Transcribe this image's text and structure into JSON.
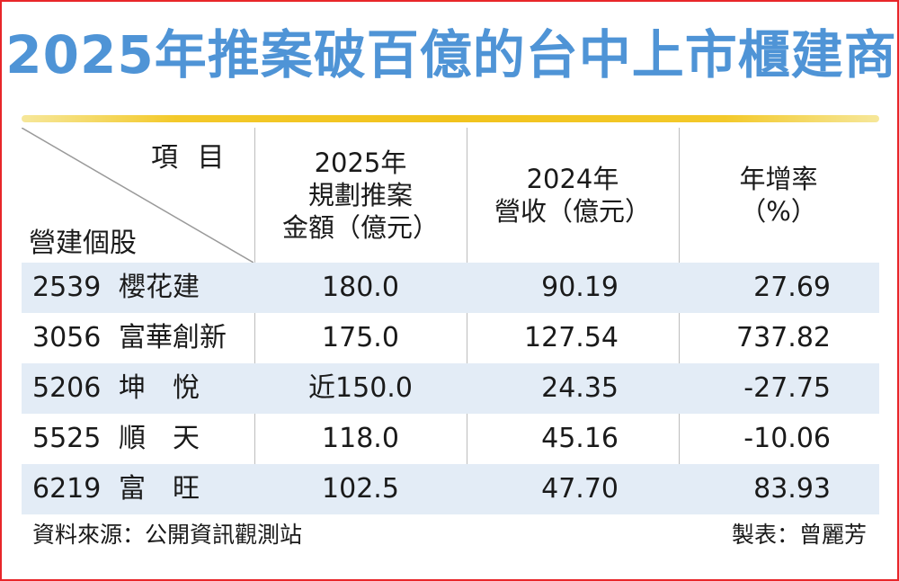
{
  "title": "2025年推案破百億的台中上市櫃建商",
  "header": {
    "corner_top": "項 目",
    "corner_bottom": "營建個股",
    "col1": [
      "2025年",
      "規劃推案",
      "金額（億元）"
    ],
    "col2": [
      "2024年",
      "營收（億元）"
    ],
    "col3": [
      "年增率",
      "（%）"
    ]
  },
  "rows": [
    {
      "code": "2539",
      "name": "櫻花建",
      "plan": "180.0",
      "revenue": "90.19",
      "rate": "27.69"
    },
    {
      "code": "3056",
      "name": "富華創新",
      "plan": "175.0",
      "revenue": "127.54",
      "rate": "737.82"
    },
    {
      "code": "5206",
      "name": "坤　悅",
      "plan": "近150.0",
      "revenue": "24.35",
      "rate": "-27.75"
    },
    {
      "code": "5525",
      "name": "順　天",
      "plan": "118.0",
      "revenue": "45.16",
      "rate": "-10.06"
    },
    {
      "code": "6219",
      "name": "富　旺",
      "plan": "102.5",
      "revenue": "47.70",
      "rate": "83.93"
    }
  ],
  "footer": {
    "source": "資料來源：公開資訊觀測站",
    "author": "製表：曾麗芳"
  },
  "colors": {
    "frame": "#e8262a",
    "title": "#4f94d6",
    "rule": "#f1c31d",
    "shaded_row": "#e3ecf6"
  }
}
